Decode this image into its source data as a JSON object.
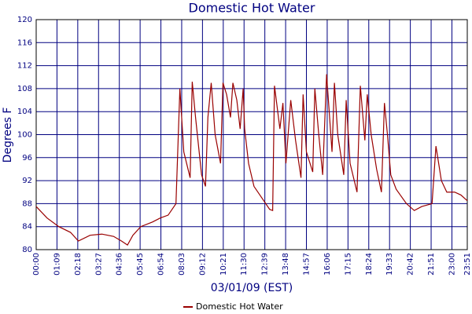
{
  "chart_data": {
    "type": "line",
    "title": "Domestic Hot Water",
    "x_label": "03/01/09 (EST)",
    "y_label": "Degrees F",
    "xlim": [
      0,
      1431
    ],
    "xticks": [
      {
        "value": 0,
        "label": "00:00"
      },
      {
        "value": 69,
        "label": "01:09"
      },
      {
        "value": 138,
        "label": "02:18"
      },
      {
        "value": 207,
        "label": "03:27"
      },
      {
        "value": 276,
        "label": "04:36"
      },
      {
        "value": 345,
        "label": "05:45"
      },
      {
        "value": 414,
        "label": "06:54"
      },
      {
        "value": 483,
        "label": "08:03"
      },
      {
        "value": 552,
        "label": "09:12"
      },
      {
        "value": 621,
        "label": "10:21"
      },
      {
        "value": 690,
        "label": "11:30"
      },
      {
        "value": 759,
        "label": "12:39"
      },
      {
        "value": 828,
        "label": "13:48"
      },
      {
        "value": 897,
        "label": "14:57"
      },
      {
        "value": 966,
        "label": "16:06"
      },
      {
        "value": 1035,
        "label": "17:15"
      },
      {
        "value": 1104,
        "label": "18:24"
      },
      {
        "value": 1173,
        "label": "19:33"
      },
      {
        "value": 1242,
        "label": "20:42"
      },
      {
        "value": 1311,
        "label": "21:51"
      },
      {
        "value": 1380,
        "label": "23:00"
      },
      {
        "value": 1431,
        "label": "23:51"
      }
    ],
    "ylim": [
      80,
      120
    ],
    "yticks": [
      80,
      84,
      88,
      92,
      96,
      100,
      104,
      108,
      112,
      116,
      120
    ],
    "grid": true,
    "legend": "bottom",
    "x": [
      0,
      36,
      75,
      114,
      140,
      179,
      218,
      257,
      283,
      303,
      321,
      347,
      386,
      412,
      438,
      464,
      477,
      490,
      511,
      518,
      529,
      549,
      562,
      570,
      581,
      594,
      612,
      620,
      632,
      645,
      653,
      666,
      677,
      687,
      692,
      705,
      723,
      749,
      775,
      785,
      791,
      809,
      819,
      829,
      845,
      861,
      879,
      886,
      897,
      918,
      925,
      938,
      951,
      964,
      982,
      990,
      1001,
      1021,
      1029,
      1042,
      1065,
      1076,
      1091,
      1099,
      1112,
      1130,
      1146,
      1156,
      1166,
      1177,
      1195,
      1229,
      1255,
      1280,
      1314,
      1327,
      1345,
      1363,
      1389,
      1410,
      1431
    ],
    "series": [
      {
        "name": "Domestic Hot Water",
        "color": "#990000",
        "values": [
          87.5,
          85.5,
          84,
          83,
          81.5,
          82.5,
          82.7,
          82.3,
          81.5,
          80.8,
          82.5,
          84,
          84.8,
          85.5,
          86,
          88,
          108,
          97,
          92.5,
          109.2,
          103,
          93,
          91,
          103,
          109,
          100,
          95,
          109,
          107,
          103,
          109,
          106,
          101,
          108,
          101,
          95,
          91,
          89,
          87,
          86.8,
          108.5,
          101,
          105.5,
          95,
          106,
          99,
          92.5,
          107,
          97,
          93.5,
          108,
          100,
          93,
          110.5,
          97,
          109,
          100,
          93,
          106,
          95,
          90,
          108.5,
          99,
          107,
          100,
          94,
          90,
          105.5,
          100,
          93,
          90.5,
          88,
          86.8,
          87.5,
          88,
          98,
          92,
          90,
          90,
          89.5,
          88.5
        ]
      }
    ]
  }
}
